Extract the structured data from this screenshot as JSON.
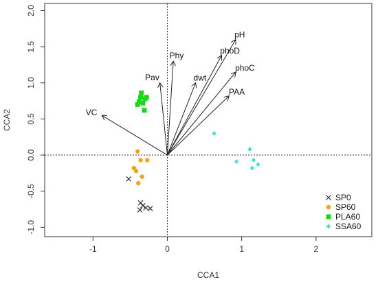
{
  "chart_data": {
    "type": "scatter",
    "title": "",
    "xlabel": "CCA1",
    "ylabel": "CCA2",
    "xlim": [
      -1.65,
      2.75
    ],
    "ylim": [
      -1.13,
      2.1
    ],
    "xticks": [
      -1,
      0,
      1,
      2
    ],
    "yticks": [
      -1.0,
      -0.5,
      0.0,
      0.5,
      1.0,
      1.5,
      2.0
    ],
    "xtick_labels": [
      "-1",
      "0",
      "1",
      "2"
    ],
    "ytick_labels": [
      "-1.0",
      "-0.5",
      "0.0",
      "0.5",
      "1.0",
      "1.5",
      "2.0"
    ],
    "reference_lines": {
      "x": 0,
      "y": 0,
      "style": "dotted"
    },
    "grid": false,
    "legend": {
      "position": "bottom-right",
      "entries": [
        {
          "label": "SP0",
          "color": "#333333",
          "marker": "cross"
        },
        {
          "label": "SP60",
          "color": "#f5a21b",
          "marker": "circle"
        },
        {
          "label": "PLA60",
          "color": "#1ed61e",
          "marker": "square"
        },
        {
          "label": "SSA60",
          "color": "#40e0d0",
          "marker": "diamond"
        }
      ]
    },
    "vectors": [
      {
        "label": "pH",
        "x": 0.92,
        "y": 1.6
      },
      {
        "label": "phoD",
        "x": 0.73,
        "y": 1.38
      },
      {
        "label": "phoC",
        "x": 0.92,
        "y": 1.15
      },
      {
        "label": "PAA",
        "x": 0.83,
        "y": 0.82
      },
      {
        "label": "dwt",
        "x": 0.38,
        "y": 1.0
      },
      {
        "label": "Phy",
        "x": 0.08,
        "y": 1.3
      },
      {
        "label": "Pav",
        "x": -0.1,
        "y": 1.0
      },
      {
        "label": "VC",
        "x": -0.88,
        "y": 0.55
      }
    ],
    "series": [
      {
        "name": "SP0",
        "points": [
          [
            -0.52,
            -0.33
          ],
          [
            -0.36,
            -0.66
          ],
          [
            -0.33,
            -0.7
          ],
          [
            -0.29,
            -0.73
          ],
          [
            -0.23,
            -0.74
          ],
          [
            -0.37,
            -0.76
          ]
        ]
      },
      {
        "name": "SP60",
        "points": [
          [
            -0.4,
            0.05
          ],
          [
            -0.36,
            -0.07
          ],
          [
            -0.27,
            -0.07
          ],
          [
            -0.45,
            -0.18
          ],
          [
            -0.42,
            -0.22
          ],
          [
            -0.34,
            -0.3
          ],
          [
            -0.39,
            -0.39
          ]
        ]
      },
      {
        "name": "PLA60",
        "points": [
          [
            -0.35,
            0.86
          ],
          [
            -0.36,
            0.8
          ],
          [
            -0.3,
            0.78
          ],
          [
            -0.28,
            0.8
          ],
          [
            -0.38,
            0.74
          ],
          [
            -0.33,
            0.72
          ],
          [
            -0.4,
            0.7
          ],
          [
            -0.31,
            0.62
          ]
        ]
      },
      {
        "name": "SSA60",
        "points": [
          [
            0.63,
            0.3
          ],
          [
            1.11,
            0.08
          ],
          [
            1.16,
            -0.07
          ],
          [
            0.93,
            -0.09
          ],
          [
            1.22,
            -0.13
          ],
          [
            1.14,
            -0.18
          ]
        ]
      }
    ]
  }
}
